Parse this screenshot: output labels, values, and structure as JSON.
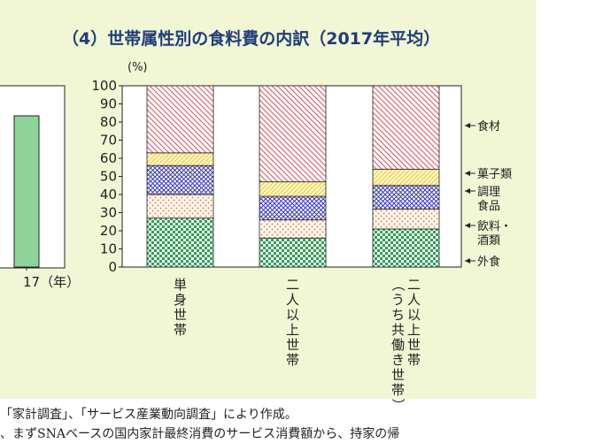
{
  "chart_data": {
    "type": "bar",
    "stacked": true,
    "title": "（4）世帯属性別の食料費の内訳（2017年平均）",
    "y_unit": "(%)",
    "ylim": [
      0,
      100
    ],
    "yticks": [
      0,
      10,
      20,
      30,
      40,
      50,
      60,
      70,
      80,
      90,
      100
    ],
    "categories": [
      "単身世帯",
      "二人以上世帯",
      "二人以上世帯（うち共働き世帯）"
    ],
    "series": [
      {
        "name": "外食",
        "values": [
          27,
          16,
          21
        ],
        "color": "#2e9e55",
        "pattern": "checker"
      },
      {
        "name": "飲料・酒類",
        "values": [
          13,
          10,
          11
        ],
        "color": "#e8a060",
        "pattern": "dots"
      },
      {
        "name": "調理食品",
        "values": [
          16,
          13,
          13
        ],
        "color": "#3a3ab8",
        "pattern": "crosshatch"
      },
      {
        "name": "菓子類",
        "values": [
          7,
          8,
          9
        ],
        "color": "#e8c83a",
        "pattern": "diag-right"
      },
      {
        "name": "食材",
        "values": [
          37,
          53,
          46
        ],
        "color": "#e0505a",
        "pattern": "diag-left"
      }
    ],
    "legend": [
      "食材",
      "菓子類",
      "調理食品",
      "飲料・酒類",
      "外食"
    ],
    "legend_placement": "right",
    "left_partial_chart": {
      "x_tick_label": "17（年）",
      "bar_color": "#8ed49a"
    }
  },
  "notes": {
    "line1": "「家計調査」、「サービス産業動向調査」により作成。",
    "line2": "、まずSNAベースの国内家計最終消費のサービス消費額から、持家の帰"
  }
}
